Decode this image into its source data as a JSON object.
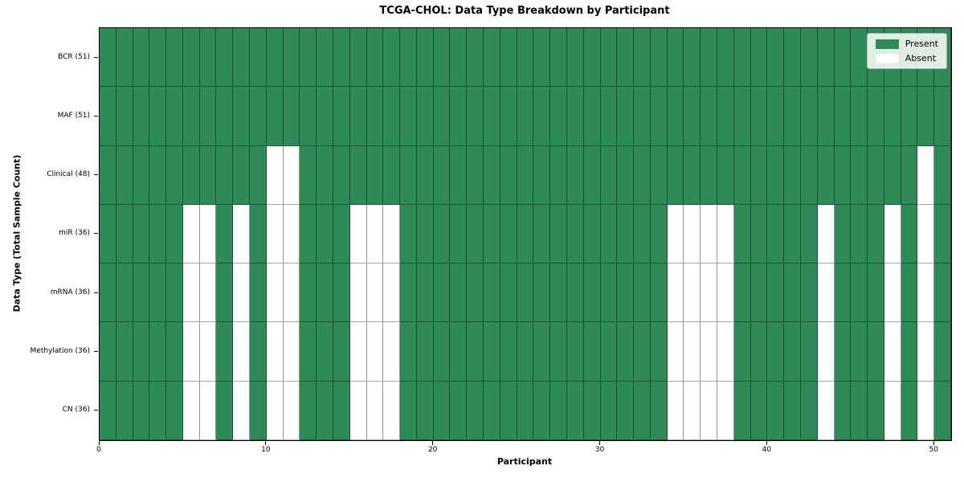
{
  "chart_data": {
    "type": "heatmap",
    "title": "TCGA-CHOL: Data Type Breakdown by Participant",
    "xlabel": "Participant",
    "ylabel": "Data Type (Total Sample Count)",
    "n_participants": 51,
    "x_range": [
      0,
      51
    ],
    "x_ticks": [
      0,
      10,
      20,
      30,
      40,
      50
    ],
    "legend_position": "upper right",
    "colors": {
      "present": "#2e8b57",
      "absent": "#ffffff",
      "cell_border": "rgba(0,0,0,0.42)",
      "frame": "#000000"
    },
    "legend": [
      {
        "label": "Present",
        "state": "present"
      },
      {
        "label": "Absent",
        "state": "absent"
      }
    ],
    "rows": [
      {
        "name": "BCR",
        "label": "BCR (51)",
        "present_count": 51,
        "absent_participants": []
      },
      {
        "name": "MAF",
        "label": "MAF (51)",
        "present_count": 51,
        "absent_participants": []
      },
      {
        "name": "Clinical",
        "label": "Clinical (48)",
        "present_count": 48,
        "absent_participants": [
          10,
          11,
          49
        ]
      },
      {
        "name": "miR",
        "label": "miR (36)",
        "present_count": 36,
        "absent_participants": [
          5,
          6,
          8,
          10,
          11,
          15,
          16,
          17,
          34,
          35,
          36,
          37,
          43,
          47,
          49
        ]
      },
      {
        "name": "mRNA",
        "label": "mRNA (36)",
        "present_count": 36,
        "absent_participants": [
          5,
          6,
          8,
          10,
          11,
          15,
          16,
          17,
          34,
          35,
          36,
          37,
          43,
          47,
          49
        ]
      },
      {
        "name": "Methylation",
        "label": "Methylation (36)",
        "present_count": 36,
        "absent_participants": [
          5,
          6,
          8,
          10,
          11,
          15,
          16,
          17,
          34,
          35,
          36,
          37,
          43,
          47,
          49
        ]
      },
      {
        "name": "CN",
        "label": "CN (36)",
        "present_count": 36,
        "absent_participants": [
          5,
          6,
          8,
          10,
          11,
          15,
          16,
          17,
          34,
          35,
          36,
          37,
          43,
          47,
          49
        ]
      }
    ]
  }
}
